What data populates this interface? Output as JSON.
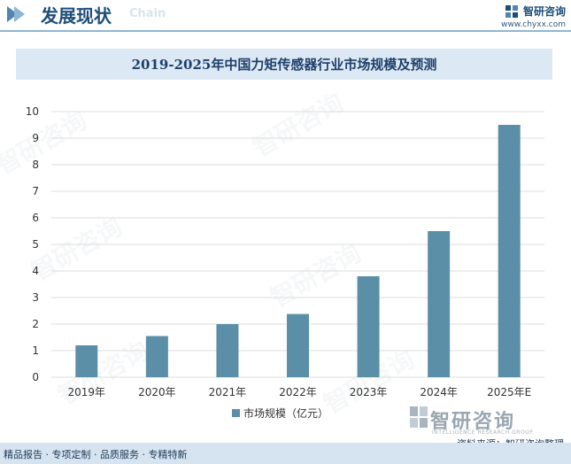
{
  "header": {
    "title": "发展现状",
    "subtitle": "Chain",
    "brand_name": "智研咨询",
    "brand_url": "www.chyxx.com"
  },
  "watermark": {
    "text": "智研咨询",
    "en": "INTELLIGENCE RESEARCH GROUP"
  },
  "chart_data": {
    "type": "bar",
    "title": "2019-2025年中国力矩传感器行业市场规模及预测",
    "categories": [
      "2019年",
      "2020年",
      "2021年",
      "2022年",
      "2023年",
      "2024年",
      "2025年E"
    ],
    "series": [
      {
        "name": "市场规模（亿元）",
        "values": [
          1.2,
          1.55,
          2.0,
          2.38,
          3.8,
          5.5,
          9.5
        ],
        "color": "#5b8fa8"
      }
    ],
    "ylim": [
      0,
      10
    ],
    "yticks": [
      "0",
      "1",
      "2",
      "3",
      "4",
      "5",
      "6",
      "7",
      "8",
      "9",
      "10"
    ],
    "grid": true,
    "legend_position": "bottom-center"
  },
  "footer": {
    "services": "精品报告 · 专项定制 · 品质服务 · 专精特新",
    "source": "资料来源：智研咨询整理"
  }
}
